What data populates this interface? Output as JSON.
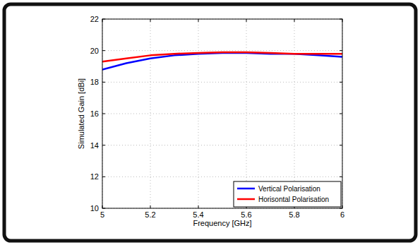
{
  "chart_data": {
    "type": "line",
    "x_label": "Frequency [GHz]",
    "y_label": "Simulated Gain [dBi]",
    "x": [
      5.0,
      5.1,
      5.2,
      5.3,
      5.4,
      5.5,
      5.6,
      5.7,
      5.8,
      5.9,
      6.0
    ],
    "series": [
      {
        "name": "Vertical Polarisation",
        "color": "#0000ff",
        "values": [
          18.8,
          19.2,
          19.5,
          19.7,
          19.8,
          19.85,
          19.85,
          19.8,
          19.8,
          19.7,
          19.6
        ]
      },
      {
        "name": "Horisontal Polarisation",
        "color": "#ff0000",
        "values": [
          19.3,
          19.5,
          19.7,
          19.8,
          19.85,
          19.9,
          19.9,
          19.85,
          19.8,
          19.8,
          19.8
        ]
      }
    ],
    "xlim": [
      5,
      6
    ],
    "xticks": [
      5,
      5.2,
      5.4,
      5.6,
      5.8,
      6
    ],
    "ylim": [
      10,
      22
    ],
    "yticks": [
      10,
      12,
      14,
      16,
      18,
      20,
      22
    ],
    "grid": true,
    "legend": "lower right"
  }
}
